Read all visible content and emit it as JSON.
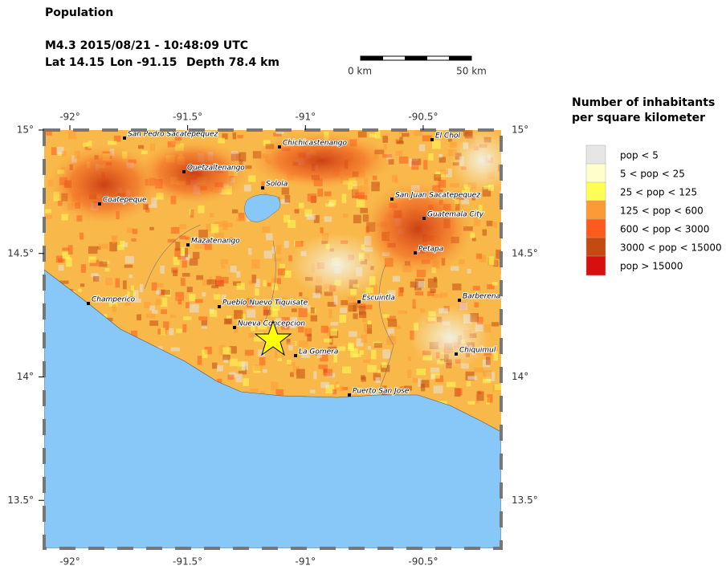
{
  "header": {
    "title": "Population",
    "event": "M4.3  2015/08/21 - 10:48:09 UTC",
    "lat": "Lat 14.15",
    "lon": "Lon -91.15",
    "depth": "Depth  78.4 km"
  },
  "scale_bar": {
    "start": "0 km",
    "end": "50 km"
  },
  "map": {
    "lon_ticks": [
      {
        "value": -92,
        "label": "-92°"
      },
      {
        "value": -91.5,
        "label": "-91.5°"
      },
      {
        "value": -91,
        "label": "-91°"
      },
      {
        "value": -90.5,
        "label": "-90.5°"
      }
    ],
    "lat_ticks": [
      {
        "value": 15,
        "label": "15°"
      },
      {
        "value": 14.5,
        "label": "14.5°"
      },
      {
        "value": 14,
        "label": "14°"
      },
      {
        "value": 13.5,
        "label": "13.5°"
      }
    ],
    "cities": [
      "San Pedro Sacatepequez",
      "Chichicastenango",
      "El Chol",
      "Quetzaltenango",
      "Solola",
      "San Juan Sacatepequez",
      "Coatepeque",
      "Guatemala City",
      "Mazatenango",
      "Petapa",
      "Champerico",
      "Pueblo Nuevo Tiquisate",
      "Escuintla",
      "Barberena",
      "Nueva Concepcion",
      "La Gomera",
      "Chiquimul",
      "Puerto San Jose"
    ]
  },
  "legend": {
    "title": [
      "Number of inhabitants",
      "per square kilometer"
    ],
    "items": [
      {
        "label": "pop < 5",
        "color": "#e6e6e6"
      },
      {
        "label": "5 < pop < 25",
        "color": "#ffffcc"
      },
      {
        "label": "25 < pop < 125",
        "color": "#ffff55"
      },
      {
        "label": "125 < pop < 600",
        "color": "#fd9a35"
      },
      {
        "label": "600 < pop < 3000",
        "color": "#fd5a1e"
      },
      {
        "label": "3000 < pop < 15000",
        "color": "#c44a12"
      },
      {
        "label": "pop > 15000",
        "color": "#d90f0f"
      }
    ]
  }
}
